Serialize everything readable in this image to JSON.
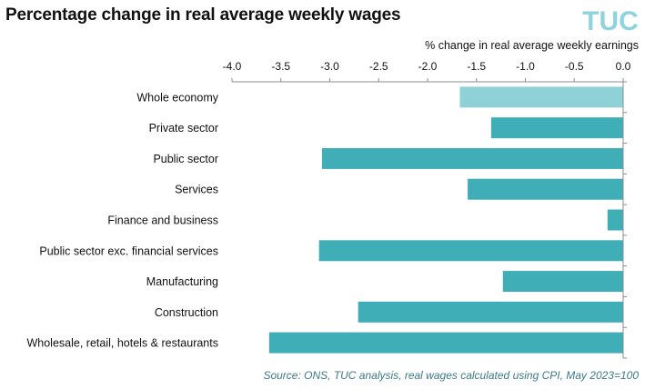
{
  "header": {
    "title": "Percentage change in real average weekly wages",
    "logo_text": "TUC",
    "logo_colors": [
      "#8fd3dc",
      "#ff5fa2",
      "#b0b0b0"
    ]
  },
  "footer": {
    "source": "Source: ONS, TUC analysis,  real wages  calculated  using  CPI, May 2023=100"
  },
  "chart_data": {
    "type": "bar",
    "orientation": "horizontal",
    "title": "Percentage change in real average weekly wages",
    "xlabel": "% change in real average weekly earnings",
    "xaxis_position": "top",
    "xlim": [
      -4.0,
      0.0
    ],
    "xticks": [
      -4.0,
      -3.5,
      -3.0,
      -2.5,
      -2.0,
      -1.5,
      -1.0,
      -0.5,
      0.0
    ],
    "xtick_labels": [
      "-4.0",
      "-3.5",
      "-3.0",
      "-2.5",
      "-2.0",
      "-1.5",
      "-1.0",
      "-0.5",
      "0.0"
    ],
    "grid": false,
    "categories": [
      "Whole economy",
      "Private sector",
      "Public sector",
      "Services",
      "Finance and business",
      "Public sector exc. financial services",
      "Manufacturing",
      "Construction",
      "Wholesale, retail, hotels & restaurants"
    ],
    "values": [
      -1.67,
      -1.35,
      -3.08,
      -1.59,
      -0.16,
      -3.11,
      -1.23,
      -2.71,
      -3.62
    ],
    "colors": [
      "#8ed2d8",
      "#40aeb7",
      "#40aeb7",
      "#40aeb7",
      "#40aeb7",
      "#40aeb7",
      "#40aeb7",
      "#40aeb7",
      "#40aeb7"
    ]
  }
}
